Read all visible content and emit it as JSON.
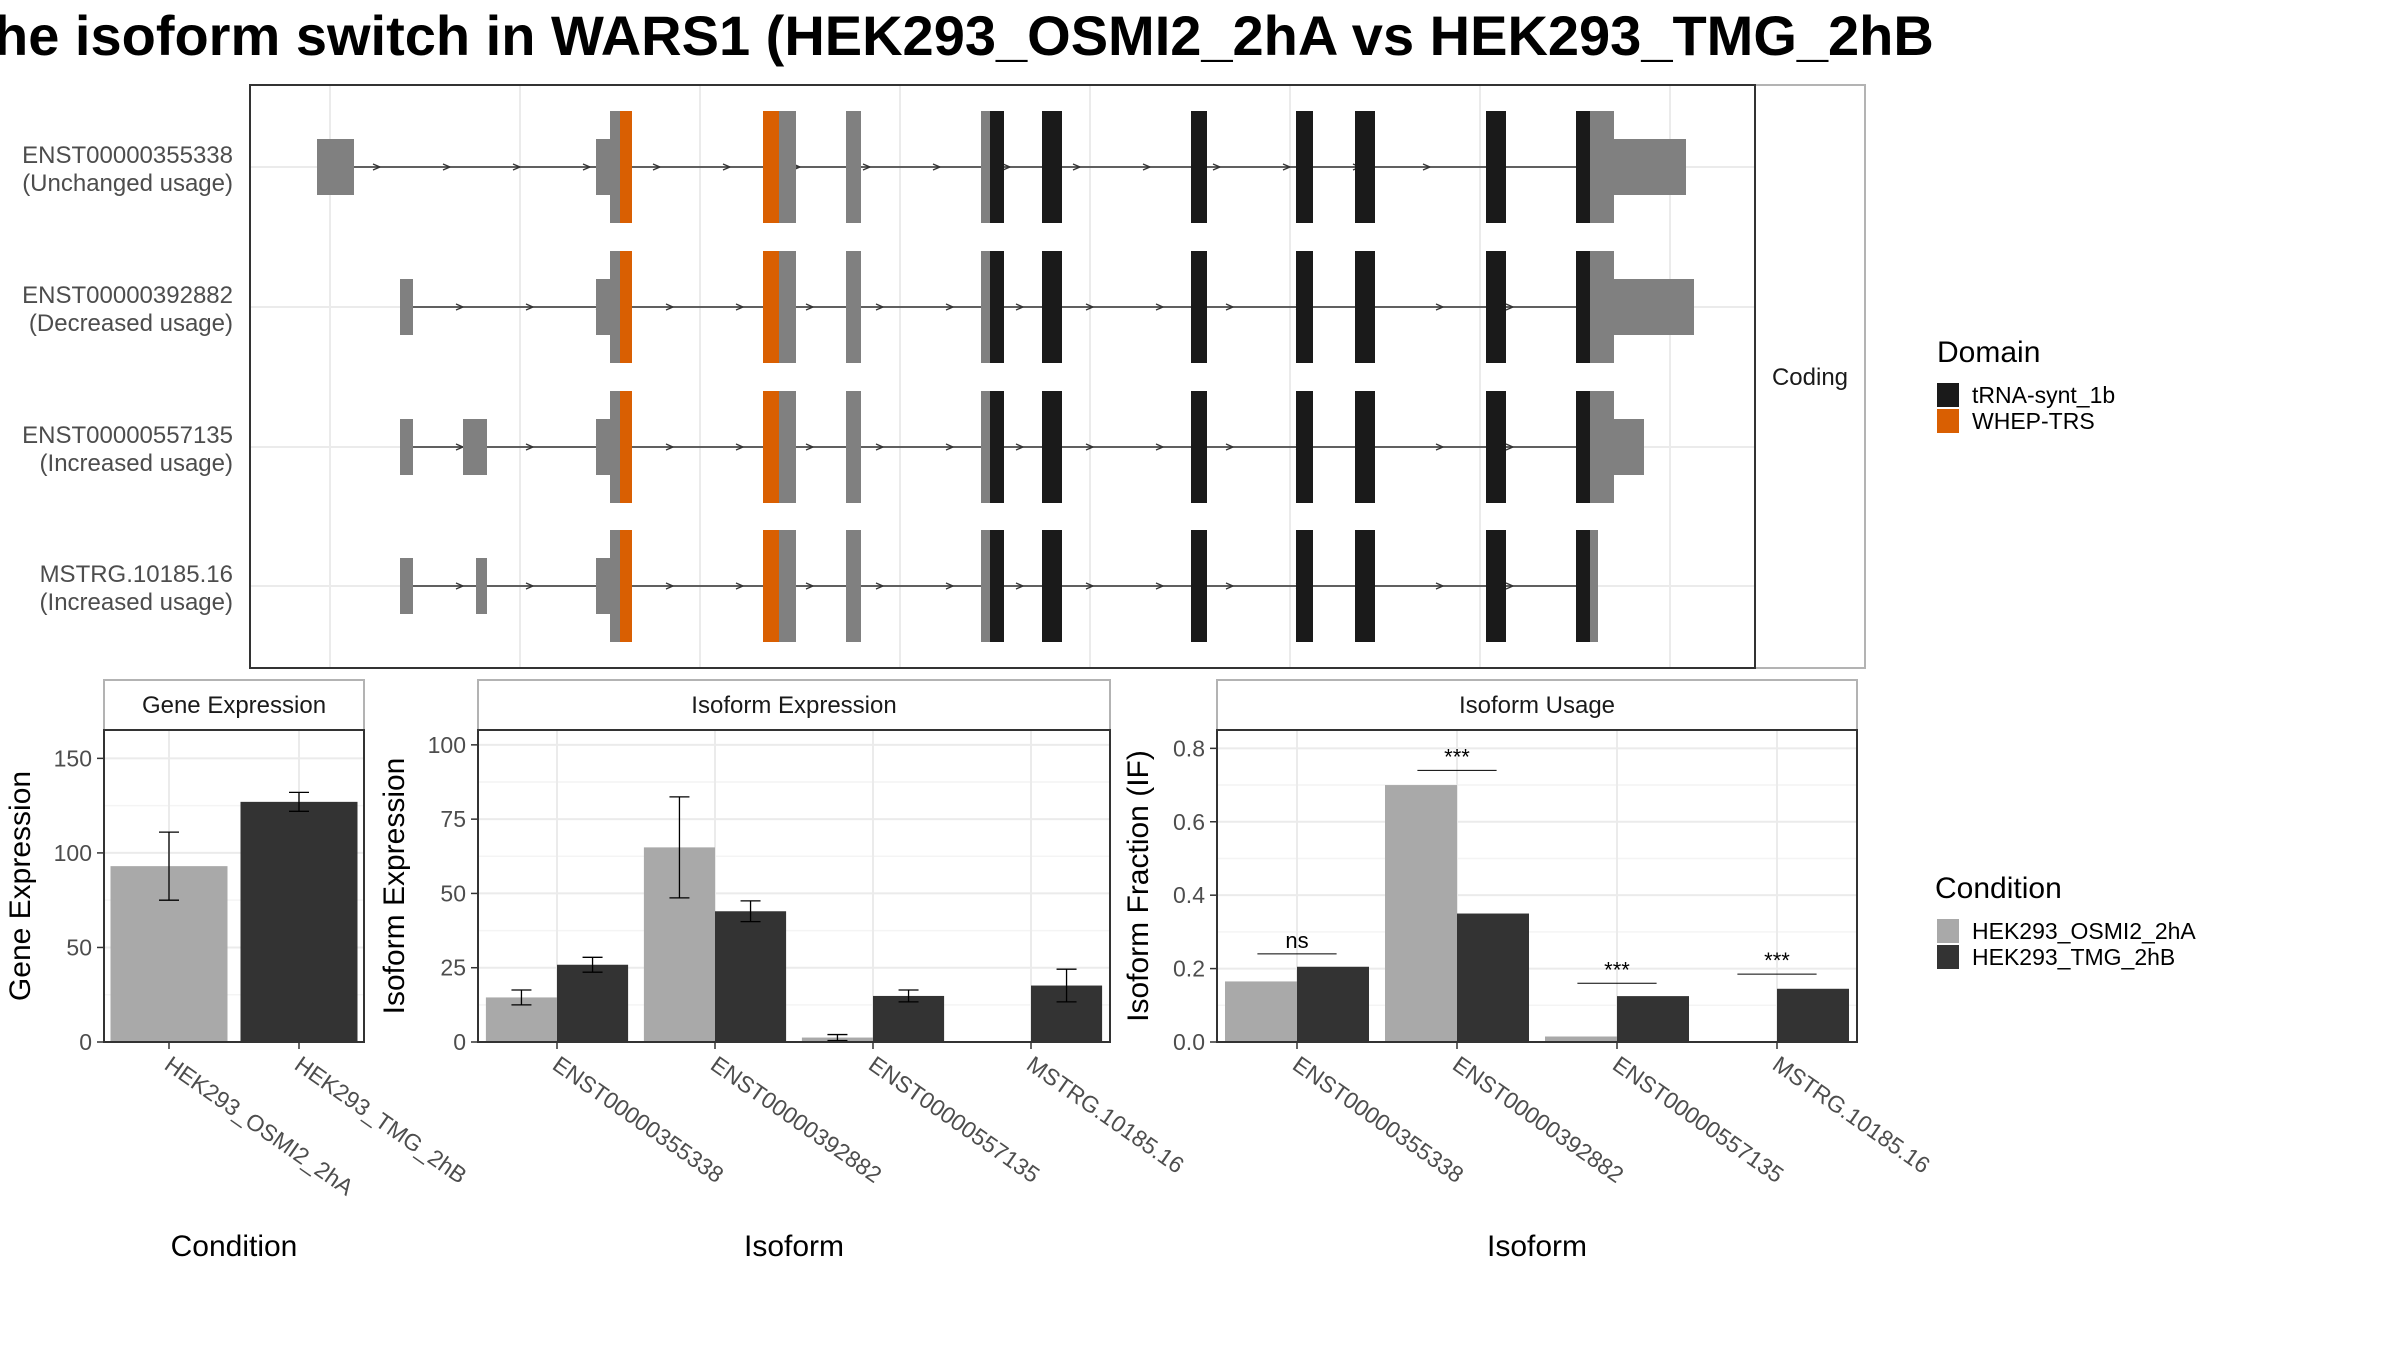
{
  "title": "he isoform switch in WARS1 (HEK293_OSMI2_2hA vs HEK293_TMG_2hB",
  "colors": {
    "cond_a": "#a9a9a9",
    "cond_b": "#333333",
    "domain_trna": "#1a1a1a",
    "domain_whep": "#d95f02",
    "exon_plain": "#808080",
    "grid": "#ebebeb",
    "panel_border": "#333333",
    "strip_border": "#b3b3b3"
  },
  "chart_data": [
    {
      "type": "isoform-structure",
      "facet_label": "Coding",
      "isoforms": [
        {
          "id": "ENST00000355338",
          "usage": "(Unchanged usage)",
          "end_cap_height": "tall"
        },
        {
          "id": "ENST00000392882",
          "usage": "(Decreased usage)",
          "end_cap_height": "tall"
        },
        {
          "id": "ENST00000557135",
          "usage": "(Increased usage)",
          "end_cap_height": "medium"
        },
        {
          "id": "MSTRG.10185.16",
          "usage": "(Increased usage)",
          "end_cap_height": "none"
        }
      ],
      "legend": {
        "title": "Domain",
        "items": [
          {
            "label": "tRNA-synt_1b",
            "color": "#1a1a1a"
          },
          {
            "label": "WHEP-TRS",
            "color": "#d95f02"
          }
        ]
      }
    },
    {
      "type": "bar",
      "title": "Gene Expression",
      "xlabel": "Condition",
      "ylabel": "Gene Expression",
      "categories": [
        "HEK293_OSMI2_2hA",
        "HEK293_TMG_2hB"
      ],
      "values": [
        93,
        127
      ],
      "errors": [
        18,
        5
      ],
      "colors": [
        "#a9a9a9",
        "#333333"
      ],
      "ylim": [
        0,
        165
      ],
      "yticks": [
        0,
        50,
        100,
        150
      ]
    },
    {
      "type": "bar",
      "title": "Isoform Expression",
      "xlabel": "Isoform",
      "ylabel": "Isoform Expression",
      "categories": [
        "ENST00000355338",
        "ENST00000392882",
        "ENST00000557135",
        "MSTRG.10185.16"
      ],
      "series": [
        {
          "name": "HEK293_OSMI2_2hA",
          "values": [
            15,
            65.5,
            1.5,
            0
          ],
          "errors": [
            2.5,
            17,
            1,
            0
          ]
        },
        {
          "name": "HEK293_TMG_2hB",
          "values": [
            26,
            44,
            15.5,
            19
          ],
          "errors": [
            2.5,
            3.5,
            2,
            5.5
          ]
        }
      ],
      "ylim": [
        0,
        105
      ],
      "yticks": [
        0,
        25,
        50,
        75,
        100
      ]
    },
    {
      "type": "bar",
      "title": "Isoform Usage",
      "xlabel": "Isoform",
      "ylabel": "Isoform Fraction (IF)",
      "categories": [
        "ENST00000355338",
        "ENST00000392882",
        "ENST00000557135",
        "MSTRG.10185.16"
      ],
      "series": [
        {
          "name": "HEK293_OSMI2_2hA",
          "values": [
            0.165,
            0.7,
            0.015,
            0
          ]
        },
        {
          "name": "HEK293_TMG_2hB",
          "values": [
            0.205,
            0.35,
            0.125,
            0.145
          ]
        }
      ],
      "significance": [
        "ns",
        "***",
        "***",
        "***"
      ],
      "sig_y": [
        0.24,
        0.74,
        0.16,
        0.185
      ],
      "ylim": [
        0,
        0.85
      ],
      "yticks": [
        "0.0",
        "0.2",
        "0.4",
        "0.6",
        "0.8"
      ],
      "legend": {
        "title": "Condition",
        "items": [
          {
            "label": "HEK293_OSMI2_2hA",
            "color": "#a9a9a9"
          },
          {
            "label": "HEK293_TMG_2hB",
            "color": "#333333"
          }
        ]
      }
    }
  ]
}
